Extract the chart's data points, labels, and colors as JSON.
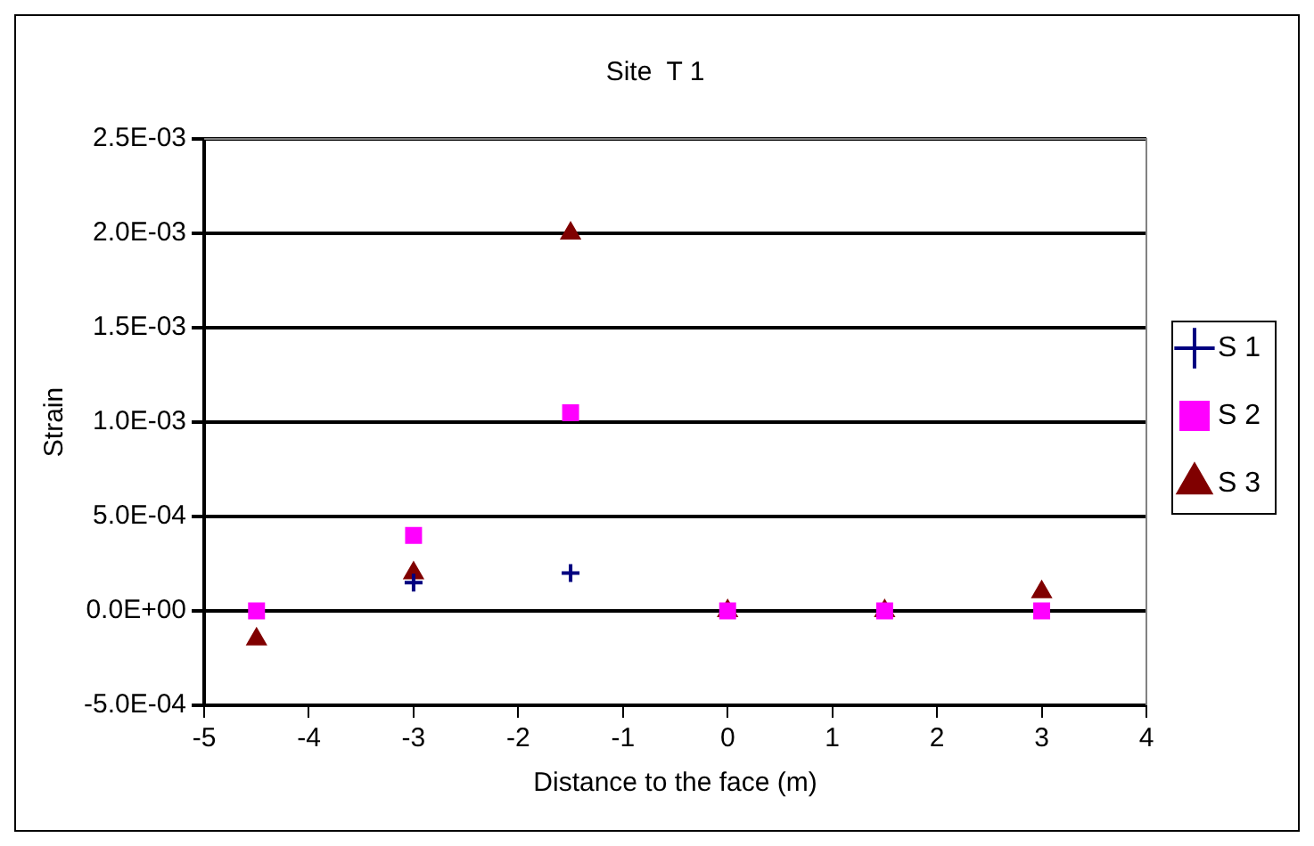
{
  "chart_data": {
    "type": "scatter",
    "title": "Site  T 1",
    "xlabel": "Distance to the face (m)",
    "ylabel": "Strain",
    "x": [
      -4.5,
      -3,
      -1.5,
      0,
      1.5,
      3
    ],
    "series": [
      {
        "name": "S 1",
        "color": "#000080",
        "marker": "cross",
        "values": [
          null,
          0.00015,
          0.0002,
          null,
          null,
          null
        ]
      },
      {
        "name": "S 2",
        "color": "#ff00ff",
        "marker": "square",
        "values": [
          0,
          0.0004,
          0.00105,
          0,
          0,
          0
        ]
      },
      {
        "name": "S 3",
        "color": "#800000",
        "marker": "triangle",
        "values": [
          -0.00015,
          0.0002,
          0.002,
          0,
          0,
          0.0001
        ]
      }
    ],
    "xlim": [
      -5,
      4
    ],
    "xticks": [
      -5,
      -4,
      -3,
      -2,
      -1,
      0,
      1,
      2,
      3,
      4
    ],
    "ylim": [
      -0.0005,
      0.0025
    ],
    "yticks": [
      {
        "value": -0.0005,
        "label": "-5.0E-04"
      },
      {
        "value": 0,
        "label": "0.0E+00"
      },
      {
        "value": 0.0005,
        "label": "5.0E-04"
      },
      {
        "value": 0.001,
        "label": "1.0E-03"
      },
      {
        "value": 0.0015,
        "label": "1.5E-03"
      },
      {
        "value": 0.002,
        "label": "2.0E-03"
      },
      {
        "value": 0.0025,
        "label": "2.5E-03"
      }
    ],
    "grid": "y",
    "legend": "right"
  }
}
